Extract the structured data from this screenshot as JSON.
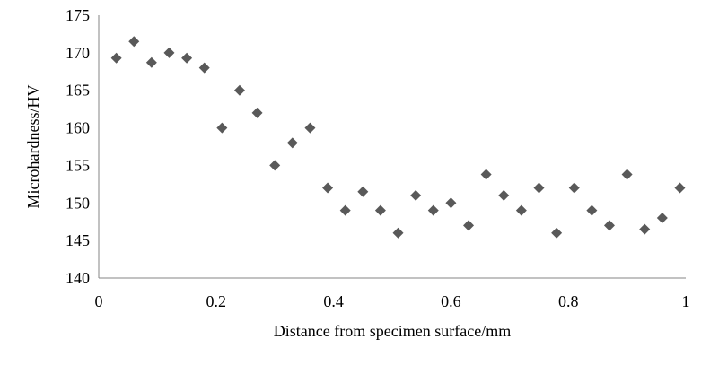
{
  "chart_data": {
    "type": "scatter",
    "title": "",
    "xlabel": "Distance from specimen surface/mm",
    "ylabel": "Microhardness/HV",
    "xlim": [
      0,
      1
    ],
    "ylim": [
      140,
      175
    ],
    "x_ticks": [
      "0",
      "0.2",
      "0.4",
      "0.6",
      "0.8",
      "1"
    ],
    "y_ticks": [
      "140",
      "145",
      "150",
      "155",
      "160",
      "165",
      "170",
      "175"
    ],
    "grid": false,
    "legend": "none",
    "marker": "diamond",
    "marker_color": "#595959",
    "series": [
      {
        "points": [
          {
            "x": 0.03,
            "y": 169.3
          },
          {
            "x": 0.06,
            "y": 171.5
          },
          {
            "x": 0.09,
            "y": 168.7
          },
          {
            "x": 0.12,
            "y": 170.0
          },
          {
            "x": 0.15,
            "y": 169.3
          },
          {
            "x": 0.18,
            "y": 168.0
          },
          {
            "x": 0.21,
            "y": 160.0
          },
          {
            "x": 0.24,
            "y": 165.0
          },
          {
            "x": 0.27,
            "y": 162.0
          },
          {
            "x": 0.3,
            "y": 155.0
          },
          {
            "x": 0.33,
            "y": 158.0
          },
          {
            "x": 0.36,
            "y": 160.0
          },
          {
            "x": 0.39,
            "y": 152.0
          },
          {
            "x": 0.42,
            "y": 149.0
          },
          {
            "x": 0.45,
            "y": 151.5
          },
          {
            "x": 0.48,
            "y": 149.0
          },
          {
            "x": 0.51,
            "y": 146.0
          },
          {
            "x": 0.54,
            "y": 151.0
          },
          {
            "x": 0.57,
            "y": 149.0
          },
          {
            "x": 0.6,
            "y": 150.0
          },
          {
            "x": 0.63,
            "y": 147.0
          },
          {
            "x": 0.66,
            "y": 153.8
          },
          {
            "x": 0.69,
            "y": 151.0
          },
          {
            "x": 0.72,
            "y": 149.0
          },
          {
            "x": 0.75,
            "y": 152.0
          },
          {
            "x": 0.78,
            "y": 146.0
          },
          {
            "x": 0.81,
            "y": 152.0
          },
          {
            "x": 0.84,
            "y": 149.0
          },
          {
            "x": 0.87,
            "y": 147.0
          },
          {
            "x": 0.9,
            "y": 153.8
          },
          {
            "x": 0.93,
            "y": 146.5
          },
          {
            "x": 0.96,
            "y": 148.0
          },
          {
            "x": 0.99,
            "y": 152.0
          }
        ]
      }
    ]
  }
}
